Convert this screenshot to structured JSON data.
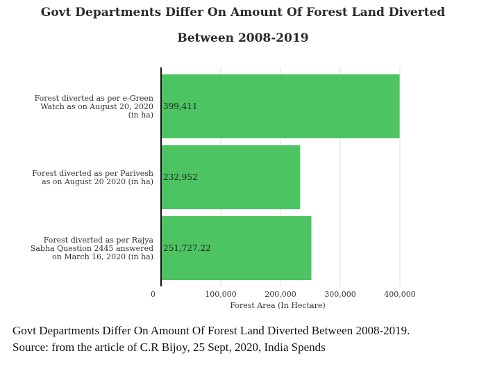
{
  "chart_data": {
    "type": "bar",
    "orientation": "horizontal",
    "title_lines": [
      "Govt Departments Differ On Amount Of Forest Land Diverted",
      "Between 2008-2019"
    ],
    "categories": [
      [
        "Forest diverted as per e-Green",
        "Watch as on August 20, 2020",
        "(in ha)"
      ],
      [
        "Forest diverted as per Parivesh",
        "as on August 20 2020 (in ha)"
      ],
      [
        "Forest diverted as per Rajya",
        "Sabha Question 2445 answered",
        "on March 16, 2020 (in ha)"
      ]
    ],
    "values": [
      399411,
      232952,
      251727.22
    ],
    "value_labels": [
      "399,411",
      "232,952",
      "251,727.22"
    ],
    "xlabel": "Forest Area (In Hectare)",
    "xlim": [
      0,
      400000
    ],
    "xticks": [
      0,
      100000,
      200000,
      300000,
      400000
    ],
    "xtick_labels": [
      "0",
      "100,000",
      "200,000",
      "300,000",
      "400,000"
    ],
    "bar_color": "#4cc462",
    "grid": true
  },
  "caption": {
    "line1": "Govt Departments Differ On Amount Of Forest Land Diverted Between 2008-2019.",
    "line2": "Source: from the article of C.R Bijoy, 25 Sept, 2020, India Spends"
  }
}
